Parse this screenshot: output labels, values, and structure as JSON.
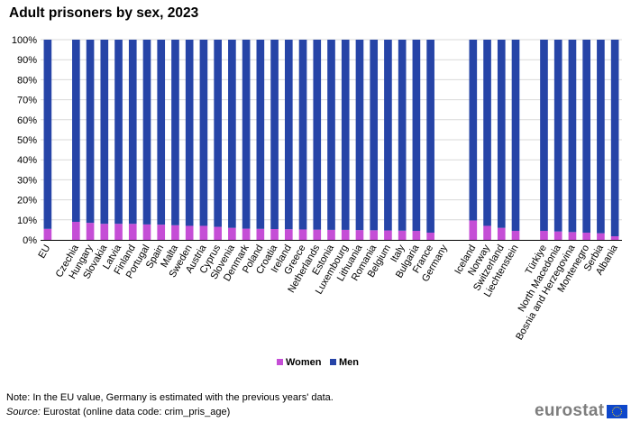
{
  "title": "Adult prisoners by sex, 2023",
  "chart_data": {
    "type": "bar",
    "stacked": true,
    "percent_stacked": true,
    "categories": [
      "EU",
      "",
      "Czechia",
      "Hungary",
      "Slovakia",
      "Latvia",
      "Finland",
      "Portugal",
      "Spain",
      "Malta",
      "Sweden",
      "Austria",
      "Cyprus",
      "Slovenia",
      "Denmark",
      "Poland",
      "Croatia",
      "Ireland",
      "Greece",
      "Netherlands",
      "Estonia",
      "Luxembourg",
      "Lithuania",
      "Romania",
      "Belgium",
      "Italy",
      "Bulgaria",
      "France",
      "Germany",
      "",
      "Iceland",
      "Norway",
      "Switzerland",
      "Liechtenstein",
      "",
      "Türkiye",
      "North Macedonia",
      "Bosnia and Herzegovina",
      "Montenegro",
      "Serbia",
      "Albania"
    ],
    "series": [
      {
        "name": "Women",
        "color": "#c54ed6",
        "values": [
          5.5,
          null,
          9.0,
          8.5,
          8.0,
          8.0,
          8.0,
          7.7,
          7.6,
          7.3,
          7.0,
          7.0,
          6.5,
          6.0,
          5.6,
          5.5,
          5.4,
          5.3,
          5.2,
          5.1,
          5.0,
          5.0,
          4.9,
          4.8,
          4.7,
          4.6,
          4.5,
          3.6,
          null,
          null,
          9.7,
          7.0,
          6.0,
          4.5,
          null,
          4.5,
          4.2,
          3.9,
          3.6,
          3.3,
          1.8
        ]
      },
      {
        "name": "Men",
        "color": "#2644a7",
        "values": [
          94.5,
          null,
          91.0,
          91.5,
          92.0,
          92.0,
          92.0,
          92.3,
          92.4,
          92.7,
          93.0,
          93.0,
          93.5,
          94.0,
          94.4,
          94.5,
          94.6,
          94.7,
          94.8,
          94.9,
          95.0,
          95.0,
          95.1,
          95.2,
          95.3,
          95.4,
          95.5,
          96.4,
          null,
          null,
          90.3,
          93.0,
          94.0,
          95.5,
          null,
          95.5,
          95.8,
          96.1,
          96.4,
          96.7,
          98.2
        ]
      }
    ],
    "y_ticks": [
      "0%",
      "10%",
      "20%",
      "30%",
      "40%",
      "50%",
      "60%",
      "70%",
      "80%",
      "90%",
      "100%"
    ],
    "ylim": [
      0,
      100
    ],
    "grid": true,
    "legend_position": "bottom-center"
  },
  "footer": {
    "note": "Note: In the EU value, Germany is estimated with the previous years' data.",
    "source_label": "Source:",
    "source_text": " Eurostat (online data code: crim_pris_age)",
    "logo_text": "eurostat"
  }
}
